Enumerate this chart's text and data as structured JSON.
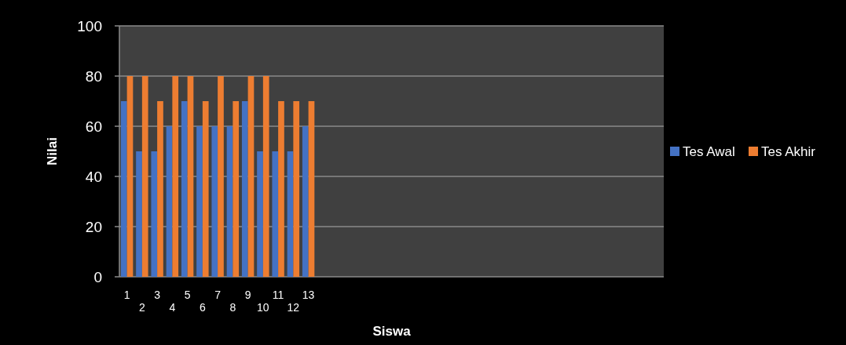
{
  "chart_data": {
    "type": "bar",
    "xlabel": "Siswa",
    "ylabel": "Nilai",
    "categories": [
      "1",
      "2",
      "3",
      "4",
      "5",
      "6",
      "7",
      "8",
      "9",
      "10",
      "11",
      "12",
      "13",
      null,
      null,
      null,
      null,
      null,
      null,
      null,
      null,
      null,
      null,
      null,
      null,
      null,
      null,
      null,
      null,
      null,
      null,
      null,
      null,
      null,
      null,
      null
    ],
    "series": [
      {
        "name": "Tes Awal",
        "color": "#4472c4",
        "values": [
          70,
          50,
          50,
          60,
          70,
          60,
          60,
          60,
          70,
          50,
          50,
          50,
          60,
          null,
          null,
          null,
          null,
          null,
          null,
          null,
          null,
          null,
          null,
          null,
          null,
          null,
          null,
          null,
          null,
          null,
          null,
          null,
          null,
          null,
          null,
          null
        ]
      },
      {
        "name": "Tes Akhir",
        "color": "#ed7d31",
        "values": [
          80,
          80,
          70,
          80,
          80,
          70,
          80,
          70,
          80,
          80,
          70,
          70,
          70,
          null,
          null,
          null,
          null,
          null,
          null,
          null,
          null,
          null,
          null,
          null,
          null,
          null,
          null,
          null,
          null,
          null,
          null,
          null,
          null,
          null,
          null,
          null
        ]
      }
    ],
    "ylim": [
      0,
      100
    ],
    "yticks": [
      0,
      20,
      40,
      60,
      80,
      100
    ],
    "grid": "y",
    "legend": "right"
  }
}
